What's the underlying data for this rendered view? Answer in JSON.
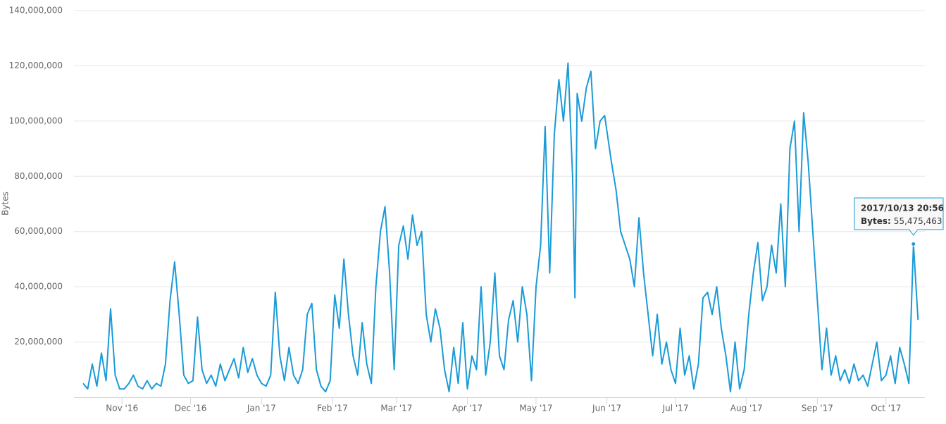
{
  "chart_data": {
    "type": "line",
    "y_label": "Bytes",
    "ylim": [
      0,
      140000000
    ],
    "yticks": [
      {
        "value": 20000000,
        "label": "20,000,000"
      },
      {
        "value": 40000000,
        "label": "40,000,000"
      },
      {
        "value": 60000000,
        "label": "60,000,000"
      },
      {
        "value": 80000000,
        "label": "80,000,000"
      },
      {
        "value": 100000000,
        "label": "100,000,000"
      },
      {
        "value": 120000000,
        "label": "120,000,000"
      },
      {
        "value": 140000000,
        "label": "140,000,000"
      }
    ],
    "xlim": [
      "2016-10-11",
      "2017-10-18"
    ],
    "xticks": [
      {
        "value": "2016-11-01",
        "label": "Nov '16"
      },
      {
        "value": "2016-12-01",
        "label": "Dec '16"
      },
      {
        "value": "2017-01-01",
        "label": "Jan '17"
      },
      {
        "value": "2017-02-01",
        "label": "Feb '17"
      },
      {
        "value": "2017-03-01",
        "label": "Mar '17"
      },
      {
        "value": "2017-04-01",
        "label": "Apr '17"
      },
      {
        "value": "2017-05-01",
        "label": "May '17"
      },
      {
        "value": "2017-06-01",
        "label": "Jun '17"
      },
      {
        "value": "2017-07-01",
        "label": "Jul '17"
      },
      {
        "value": "2017-08-01",
        "label": "Aug '17"
      },
      {
        "value": "2017-09-01",
        "label": "Sep '17"
      },
      {
        "value": "2017-10-01",
        "label": "Oct '17"
      }
    ],
    "grid": true,
    "x": [
      "2016-10-15",
      "2016-10-17",
      "2016-10-19",
      "2016-10-21",
      "2016-10-23",
      "2016-10-25",
      "2016-10-27",
      "2016-10-29",
      "2016-10-31",
      "2016-11-02",
      "2016-11-04",
      "2016-11-06",
      "2016-11-08",
      "2016-11-10",
      "2016-11-12",
      "2016-11-14",
      "2016-11-16",
      "2016-11-18",
      "2016-11-20",
      "2016-11-22",
      "2016-11-24",
      "2016-11-26",
      "2016-11-28",
      "2016-11-30",
      "2016-12-02",
      "2016-12-04",
      "2016-12-06",
      "2016-12-08",
      "2016-12-10",
      "2016-12-12",
      "2016-12-14",
      "2016-12-16",
      "2016-12-18",
      "2016-12-20",
      "2016-12-22",
      "2016-12-24",
      "2016-12-26",
      "2016-12-28",
      "2016-12-30",
      "2017-01-01",
      "2017-01-03",
      "2017-01-05",
      "2017-01-07",
      "2017-01-09",
      "2017-01-11",
      "2017-01-13",
      "2017-01-15",
      "2017-01-17",
      "2017-01-19",
      "2017-01-21",
      "2017-01-23",
      "2017-01-25",
      "2017-01-27",
      "2017-01-29",
      "2017-01-31",
      "2017-02-02",
      "2017-02-04",
      "2017-02-06",
      "2017-02-08",
      "2017-02-10",
      "2017-02-12",
      "2017-02-14",
      "2017-02-16",
      "2017-02-18",
      "2017-02-20",
      "2017-02-22",
      "2017-02-24",
      "2017-02-26",
      "2017-02-28",
      "2017-03-02",
      "2017-03-04",
      "2017-03-06",
      "2017-03-08",
      "2017-03-10",
      "2017-03-12",
      "2017-03-14",
      "2017-03-16",
      "2017-03-18",
      "2017-03-20",
      "2017-03-22",
      "2017-03-24",
      "2017-03-26",
      "2017-03-28",
      "2017-03-30",
      "2017-04-01",
      "2017-04-03",
      "2017-04-05",
      "2017-04-07",
      "2017-04-09",
      "2017-04-11",
      "2017-04-13",
      "2017-04-15",
      "2017-04-17",
      "2017-04-19",
      "2017-04-21",
      "2017-04-23",
      "2017-04-25",
      "2017-04-27",
      "2017-04-29",
      "2017-05-01",
      "2017-05-03",
      "2017-05-05",
      "2017-05-07",
      "2017-05-09",
      "2017-05-11",
      "2017-05-13",
      "2017-05-15",
      "2017-05-17",
      "2017-05-18",
      "2017-05-19",
      "2017-05-21",
      "2017-05-23",
      "2017-05-25",
      "2017-05-27",
      "2017-05-29",
      "2017-05-31",
      "2017-06-03",
      "2017-06-05",
      "2017-06-07",
      "2017-06-09",
      "2017-06-11",
      "2017-06-13",
      "2017-06-15",
      "2017-06-17",
      "2017-06-19",
      "2017-06-21",
      "2017-06-23",
      "2017-06-25",
      "2017-06-27",
      "2017-06-29",
      "2017-07-01",
      "2017-07-03",
      "2017-07-05",
      "2017-07-07",
      "2017-07-09",
      "2017-07-11",
      "2017-07-13",
      "2017-07-15",
      "2017-07-17",
      "2017-07-19",
      "2017-07-21",
      "2017-07-23",
      "2017-07-25",
      "2017-07-27",
      "2017-07-29",
      "2017-07-31",
      "2017-08-02",
      "2017-08-04",
      "2017-08-06",
      "2017-08-08",
      "2017-08-10",
      "2017-08-12",
      "2017-08-14",
      "2017-08-16",
      "2017-08-18",
      "2017-08-20",
      "2017-08-22",
      "2017-08-24",
      "2017-08-26",
      "2017-08-28",
      "2017-08-30",
      "2017-09-01",
      "2017-09-03",
      "2017-09-05",
      "2017-09-07",
      "2017-09-09",
      "2017-09-11",
      "2017-09-13",
      "2017-09-15",
      "2017-09-17",
      "2017-09-19",
      "2017-09-21",
      "2017-09-23",
      "2017-09-25",
      "2017-09-27",
      "2017-09-29",
      "2017-10-01",
      "2017-10-03",
      "2017-10-05",
      "2017-10-07",
      "2017-10-09",
      "2017-10-11",
      "2017-10-13",
      "2017-10-15"
    ],
    "series": [
      {
        "name": "Bytes",
        "color": "#1a9bd7",
        "values": [
          5000000.0,
          3000000.0,
          12000000.0,
          4000000.0,
          16000000.0,
          6000000.0,
          32000000.0,
          8000000.0,
          3000000.0,
          3000000.0,
          5000000.0,
          8000000.0,
          4000000.0,
          3000000.0,
          6000000.0,
          3000000.0,
          5000000.0,
          4000000.0,
          12000000.0,
          35000000.0,
          49000000.0,
          30000000.0,
          8000000.0,
          5000000.0,
          6000000.0,
          29000000.0,
          10000000.0,
          5000000.0,
          8000000.0,
          4000000.0,
          12000000.0,
          6000000.0,
          10000000.0,
          14000000.0,
          7000000.0,
          18000000.0,
          9000000.0,
          14000000.0,
          8000000.0,
          5000000.0,
          4000000.0,
          8000000.0,
          38000000.0,
          15000000.0,
          6000000.0,
          18000000.0,
          8000000.0,
          5000000.0,
          10000000.0,
          30000000.0,
          34000000.0,
          10000000.0,
          4000000.0,
          2000000.0,
          6000000.0,
          37000000.0,
          25000000.0,
          50000000.0,
          30000000.0,
          15000000.0,
          8000000.0,
          27000000.0,
          12000000.0,
          5000000.0,
          40000000.0,
          60000000.0,
          69000000.0,
          45000000.0,
          10000000.0,
          55000000.0,
          62000000.0,
          50000000.0,
          66000000.0,
          55000000.0,
          60000000.0,
          30000000.0,
          20000000.0,
          32000000.0,
          25000000.0,
          10000000.0,
          2000000.0,
          18000000.0,
          5000000.0,
          27000000.0,
          3000000.0,
          15000000.0,
          10000000.0,
          40000000.0,
          8000000.0,
          20000000.0,
          45000000.0,
          15000000.0,
          10000000.0,
          28000000.0,
          35000000.0,
          20000000.0,
          40000000.0,
          30000000.0,
          6000000.0,
          40000000.0,
          55000000.0,
          98000000.0,
          45000000.0,
          95000000.0,
          115000000.0,
          100000000.0,
          121000000.0,
          80000000.0,
          36000000.0,
          110000000.0,
          100000000.0,
          112000000.0,
          118000000.0,
          90000000.0,
          100000000.0,
          102000000.0,
          85000000.0,
          75000000.0,
          60000000.0,
          55000000.0,
          50000000.0,
          40000000.0,
          65000000.0,
          45000000.0,
          30000000.0,
          15000000.0,
          30000000.0,
          12000000.0,
          20000000.0,
          10000000.0,
          5000000.0,
          25000000.0,
          8000000.0,
          15000000.0,
          3000000.0,
          12000000.0,
          36000000.0,
          38000000.0,
          30000000.0,
          40000000.0,
          25000000.0,
          15000000.0,
          2000000.0,
          20000000.0,
          3000000.0,
          10000000.0,
          30000000.0,
          45000000.0,
          56000000.0,
          35000000.0,
          40000000.0,
          55000000.0,
          45000000.0,
          70000000.0,
          40000000.0,
          90000000.0,
          100000000.0,
          60000000.0,
          103000000.0,
          85000000.0,
          60000000.0,
          35000000.0,
          10000000.0,
          25000000.0,
          8000000.0,
          15000000.0,
          6000000.0,
          10000000.0,
          5000000.0,
          12000000.0,
          6000000.0,
          8000000.0,
          4000000.0,
          12000000.0,
          20000000.0,
          6000000.0,
          8000000.0,
          15000000.0,
          5000000.0,
          18000000.0,
          12000000.0,
          5000000.0,
          55475463,
          28000000.0
        ]
      }
    ],
    "tooltip": {
      "title": "2017/10/13 20:56",
      "label": "Bytes:",
      "value": 55475463,
      "value_label": "55,475,463"
    }
  }
}
